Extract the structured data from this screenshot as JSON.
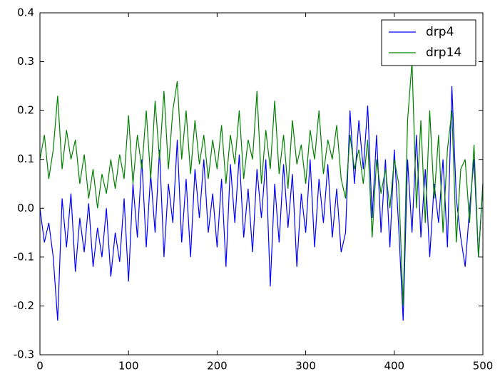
{
  "chart_data": {
    "type": "line",
    "x": [
      0,
      5,
      10,
      15,
      20,
      25,
      30,
      35,
      40,
      45,
      50,
      55,
      60,
      65,
      70,
      75,
      80,
      85,
      90,
      95,
      100,
      105,
      110,
      115,
      120,
      125,
      130,
      135,
      140,
      145,
      150,
      155,
      160,
      165,
      170,
      175,
      180,
      185,
      190,
      195,
      200,
      205,
      210,
      215,
      220,
      225,
      230,
      235,
      240,
      245,
      250,
      255,
      260,
      265,
      270,
      275,
      280,
      285,
      290,
      295,
      300,
      305,
      310,
      315,
      320,
      325,
      330,
      335,
      340,
      345,
      350,
      355,
      360,
      365,
      370,
      375,
      380,
      385,
      390,
      395,
      400,
      405,
      410,
      415,
      420,
      425,
      430,
      435,
      440,
      445,
      450,
      455,
      460,
      465,
      470,
      475,
      480,
      485,
      490,
      495,
      500
    ],
    "series": [
      {
        "name": "drp4",
        "color": "#0000ff",
        "values": [
          0.0,
          -0.07,
          -0.03,
          -0.1,
          -0.23,
          0.02,
          -0.08,
          0.03,
          -0.13,
          -0.02,
          -0.09,
          0.01,
          -0.12,
          -0.04,
          -0.1,
          0.0,
          -0.14,
          -0.05,
          -0.11,
          0.02,
          -0.15,
          0.05,
          -0.06,
          0.1,
          -0.08,
          0.07,
          -0.05,
          0.12,
          -0.1,
          0.05,
          -0.03,
          0.14,
          -0.07,
          0.06,
          -0.1,
          0.08,
          -0.02,
          0.1,
          -0.05,
          0.03,
          -0.08,
          0.06,
          -0.12,
          0.09,
          -0.03,
          0.11,
          -0.06,
          0.04,
          -0.09,
          0.08,
          -0.02,
          0.1,
          -0.16,
          0.05,
          -0.07,
          0.09,
          -0.04,
          0.07,
          -0.12,
          0.03,
          -0.05,
          0.1,
          -0.08,
          0.06,
          -0.03,
          0.09,
          -0.06,
          0.04,
          -0.09,
          -0.05,
          0.2,
          0.05,
          0.18,
          0.08,
          0.21,
          -0.02,
          0.15,
          -0.05,
          0.1,
          -0.08,
          0.12,
          -0.04,
          -0.23,
          0.1,
          -0.05,
          0.15,
          -0.06,
          0.08,
          -0.1,
          0.05,
          -0.03,
          0.1,
          -0.08,
          0.25,
          0.02,
          -0.06,
          -0.12,
          0.0,
          0.1,
          -0.1,
          0.05
        ]
      },
      {
        "name": "drp14",
        "color": "#008000",
        "values": [
          0.1,
          0.15,
          0.06,
          0.12,
          0.23,
          0.08,
          0.16,
          0.1,
          0.14,
          0.05,
          0.11,
          0.02,
          0.08,
          0.0,
          0.07,
          0.03,
          0.1,
          0.04,
          0.11,
          0.06,
          0.19,
          0.05,
          0.15,
          0.08,
          0.2,
          0.06,
          0.22,
          0.1,
          0.24,
          0.08,
          0.2,
          0.26,
          0.1,
          0.2,
          0.07,
          0.18,
          0.09,
          0.15,
          0.06,
          0.14,
          0.08,
          0.17,
          0.05,
          0.15,
          0.09,
          0.2,
          0.06,
          0.14,
          0.1,
          0.24,
          0.05,
          0.16,
          0.08,
          0.22,
          0.07,
          0.15,
          0.04,
          0.18,
          0.09,
          0.13,
          0.05,
          0.16,
          0.1,
          0.2,
          0.07,
          0.14,
          0.1,
          0.17,
          0.06,
          0.02,
          0.15,
          0.08,
          0.12,
          0.05,
          0.14,
          -0.06,
          0.1,
          0.03,
          0.08,
          0.0,
          0.1,
          0.05,
          -0.2,
          0.18,
          0.3,
          0.0,
          0.18,
          -0.03,
          0.2,
          0.02,
          0.15,
          -0.05,
          0.12,
          0.2,
          -0.07,
          0.08,
          0.1,
          -0.03,
          0.13,
          -0.1,
          0.05
        ]
      }
    ],
    "xlim": [
      0,
      500
    ],
    "xticks": [
      0,
      100,
      200,
      300,
      400,
      500
    ],
    "ylim": [
      -0.3,
      0.4
    ],
    "yticks": [
      -0.3,
      -0.2,
      -0.1,
      0.0,
      0.1,
      0.2,
      0.3,
      0.4
    ],
    "grid": false,
    "legend": "upper right"
  }
}
